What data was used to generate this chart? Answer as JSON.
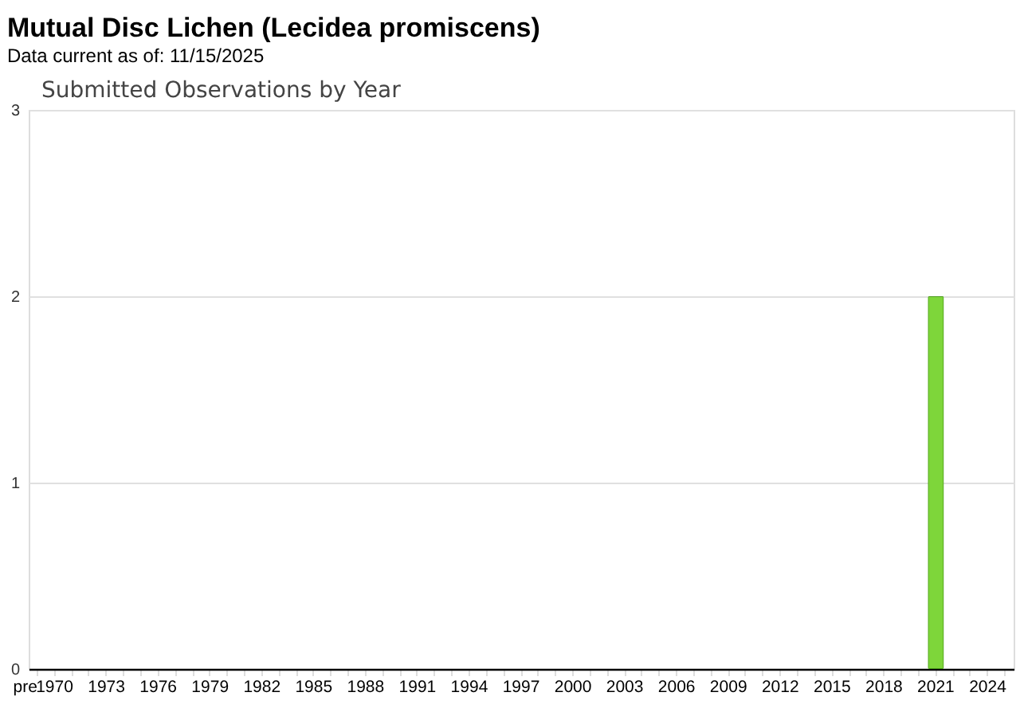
{
  "chart_data": {
    "type": "bar",
    "title": "Mutual Disc Lichen   (Lecidea promiscens)",
    "subtitle": "Data current as of: 11/15/2025",
    "annotations": [
      "Submitted Observations by Year"
    ],
    "categories": [
      "pre",
      "1970",
      null,
      null,
      "1973",
      null,
      null,
      "1976",
      null,
      null,
      "1979",
      null,
      null,
      "1982",
      null,
      null,
      "1985",
      null,
      null,
      "1988",
      null,
      null,
      "1991",
      null,
      null,
      "1994",
      null,
      null,
      "1997",
      null,
      null,
      "2000",
      null,
      null,
      "2003",
      null,
      null,
      "2006",
      null,
      null,
      "2009",
      null,
      null,
      "2012",
      null,
      null,
      "2015",
      null,
      null,
      "2018",
      null,
      null,
      "2021",
      null,
      null,
      "2024",
      null
    ],
    "values": [
      0,
      0,
      0,
      0,
      0,
      0,
      0,
      0,
      0,
      0,
      0,
      0,
      0,
      0,
      0,
      0,
      0,
      0,
      0,
      0,
      0,
      0,
      0,
      0,
      0,
      0,
      0,
      0,
      0,
      0,
      0,
      0,
      0,
      0,
      0,
      0,
      0,
      0,
      0,
      0,
      0,
      0,
      0,
      0,
      0,
      0,
      0,
      0,
      0,
      0,
      0,
      0,
      2,
      0,
      0,
      0,
      0
    ],
    "color": "#7ed63a",
    "ylim": [
      0,
      3
    ],
    "yticks": [
      0,
      1,
      2,
      3
    ],
    "grid": "y"
  }
}
